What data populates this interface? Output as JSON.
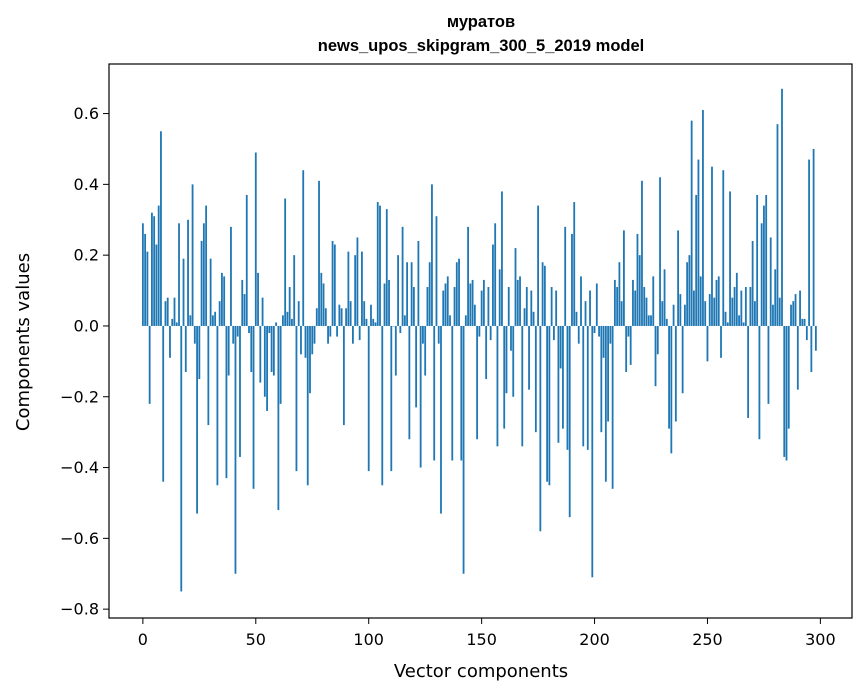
{
  "chart_data": {
    "type": "bar",
    "title_line1": "муратов",
    "title_line2": "news_upos_skipgram_300_5_2019 model",
    "xlabel": "Vector components",
    "ylabel": "Components values",
    "xlim": [
      -15,
      314
    ],
    "ylim": [
      -0.825,
      0.74
    ],
    "xticks": [
      0,
      50,
      100,
      150,
      200,
      250,
      300
    ],
    "yticks": [
      0.6,
      0.4,
      0.2,
      0.0,
      -0.2,
      -0.4,
      -0.6,
      -0.8
    ],
    "ytick_labels": [
      "0.6",
      "0.4",
      "0.2",
      "0.0",
      "−0.2",
      "−0.4",
      "−0.6",
      "−0.8"
    ],
    "xtick_labels": [
      "0",
      "50",
      "100",
      "150",
      "200",
      "250",
      "300"
    ],
    "bar_color": "#1f77b4",
    "series": [
      {
        "name": "муратов",
        "values": [
          0.29,
          0.26,
          0.21,
          -0.22,
          0.32,
          0.31,
          0.23,
          0.34,
          0.55,
          -0.44,
          0.07,
          0.08,
          -0.09,
          0.02,
          0.08,
          0.01,
          0.29,
          -0.75,
          0.19,
          -0.13,
          0.3,
          0.03,
          0.4,
          -0.05,
          -0.53,
          -0.15,
          0.24,
          0.29,
          0.34,
          -0.28,
          0.19,
          0.03,
          0.04,
          -0.45,
          0.07,
          0.15,
          0.14,
          -0.43,
          -0.14,
          0.28,
          -0.05,
          -0.7,
          -0.03,
          -0.37,
          0.13,
          0.09,
          0.37,
          -0.02,
          -0.13,
          -0.46,
          0.49,
          0.15,
          -0.16,
          0.08,
          -0.2,
          -0.24,
          -0.02,
          -0.13,
          -0.14,
          0.01,
          -0.52,
          -0.22,
          0.03,
          0.36,
          0.04,
          0.11,
          0.02,
          0.2,
          -0.41,
          0.07,
          -0.08,
          0.44,
          -0.09,
          -0.45,
          -0.19,
          -0.08,
          -0.05,
          0.05,
          0.41,
          0.15,
          0.12,
          0.05,
          -0.05,
          -0.03,
          0.24,
          0.23,
          -0.03,
          0.06,
          0.05,
          -0.28,
          0.05,
          0.21,
          0.07,
          -0.05,
          0.2,
          0.25,
          -0.04,
          0.21,
          0.07,
          0.02,
          -0.41,
          0.06,
          0.02,
          0.01,
          0.35,
          0.34,
          -0.45,
          0.12,
          0.33,
          0.13,
          -0.41,
          0.0,
          -0.14,
          0.2,
          -0.02,
          0.28,
          0.03,
          0.18,
          -0.32,
          0.18,
          0.11,
          -0.23,
          0.24,
          -0.4,
          -0.05,
          -0.14,
          0.11,
          0.18,
          0.4,
          -0.38,
          0.31,
          -0.05,
          -0.53,
          0.1,
          0.12,
          0.14,
          0.03,
          -0.38,
          0.11,
          0.18,
          0.19,
          -0.38,
          -0.7,
          0.03,
          0.28,
          0.12,
          0.13,
          0.06,
          -0.32,
          -0.03,
          0.1,
          0.13,
          -0.15,
          0.11,
          -0.04,
          0.23,
          0.29,
          -0.34,
          0.16,
          0.38,
          -0.29,
          -0.19,
          0.11,
          -0.07,
          -0.2,
          0.22,
          0.13,
          0.14,
          -0.34,
          0.05,
          0.11,
          -0.18,
          0.1,
          0.04,
          -0.3,
          0.34,
          -0.58,
          0.18,
          0.17,
          -0.44,
          -0.45,
          0.11,
          -0.04,
          0.1,
          -0.33,
          -0.12,
          -0.29,
          0.28,
          -0.35,
          -0.54,
          0.26,
          0.35,
          0.04,
          -0.05,
          0.14,
          -0.34,
          0.07,
          -0.35,
          0.1,
          -0.71,
          -0.02,
          0.12,
          -0.03,
          -0.3,
          -0.09,
          -0.44,
          -0.27,
          -0.05,
          -0.46,
          0.13,
          0.11,
          0.18,
          0.07,
          0.27,
          -0.13,
          -0.03,
          -0.11,
          0.13,
          0.1,
          0.26,
          0.2,
          0.41,
          0.11,
          0.08,
          0.03,
          0.03,
          0.14,
          -0.17,
          -0.08,
          0.42,
          0.07,
          0.16,
          0.02,
          -0.29,
          -0.36,
          0.06,
          -0.27,
          0.27,
          0.09,
          -0.19,
          0.06,
          0.18,
          0.2,
          0.58,
          0.1,
          0.37,
          0.47,
          0.14,
          0.61,
          0.07,
          -0.1,
          0.09,
          0.45,
          0.08,
          0.13,
          0.14,
          -0.09,
          0.44,
          0.04,
          0.01,
          0.38,
          0.08,
          0.11,
          0.15,
          0.03,
          0.1,
          0.01,
          0.11,
          -0.26,
          0.11,
          0.24,
          0.07,
          0.37,
          -0.32,
          0.29,
          0.34,
          0.37,
          -0.22,
          0.25,
          0.06,
          0.16,
          0.57,
          0.08,
          0.67,
          -0.37,
          -0.38,
          -0.29,
          0.06,
          0.07,
          0.09,
          -0.18,
          0.1,
          0.02,
          0.02,
          -0.04,
          0.47,
          -0.13,
          0.5,
          -0.07
        ]
      }
    ]
  }
}
